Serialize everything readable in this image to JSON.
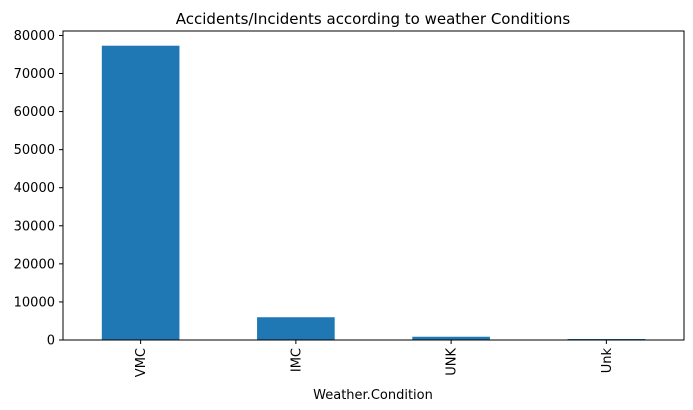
{
  "chart_data": {
    "type": "bar",
    "title": "Accidents/Incidents according to weather Conditions",
    "xlabel": "Weather.Condition",
    "ylabel": "",
    "categories": [
      "VMC",
      "IMC",
      "UNK",
      "Unk"
    ],
    "values": [
      77303,
      5976,
      856,
      262
    ],
    "ylim": [
      0,
      81168
    ],
    "yticks": [
      0,
      10000,
      20000,
      30000,
      40000,
      50000,
      60000,
      70000,
      80000
    ],
    "grid": false,
    "legend": "none",
    "bar_color": "#1f77b4"
  }
}
